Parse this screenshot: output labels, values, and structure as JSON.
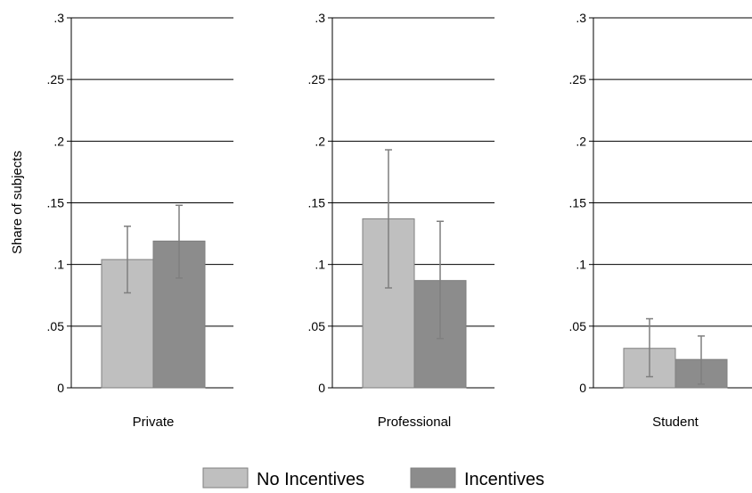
{
  "chart_data": {
    "type": "bar",
    "ylabel": "Share of subjects",
    "ylim": [
      0,
      0.3
    ],
    "yticks": [
      {
        "value": 0,
        "label": "0"
      },
      {
        "value": 0.05,
        "label": ".05"
      },
      {
        "value": 0.1,
        "label": ".1"
      },
      {
        "value": 0.15,
        "label": ".15"
      },
      {
        "value": 0.2,
        "label": ".2"
      },
      {
        "value": 0.25,
        "label": ".25"
      },
      {
        "value": 0.3,
        "label": ".3"
      }
    ],
    "grid": true,
    "legend_position": "bottom",
    "categories": [
      "Private",
      "Professional",
      "Student"
    ],
    "series": [
      {
        "name": "No Incentives",
        "color": "#bfbfbf",
        "values": [
          0.104,
          0.137,
          0.032
        ],
        "ci_low": [
          0.077,
          0.081,
          0.009
        ],
        "ci_high": [
          0.131,
          0.193,
          0.056
        ]
      },
      {
        "name": "Incentives",
        "color": "#8c8c8c",
        "values": [
          0.119,
          0.087,
          0.023
        ],
        "ci_low": [
          0.089,
          0.04,
          0.003
        ],
        "ci_high": [
          0.148,
          0.135,
          0.042
        ]
      }
    ]
  }
}
